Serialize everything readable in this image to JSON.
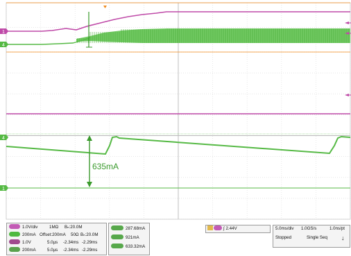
{
  "annotation": {
    "current_label": "635mA"
  },
  "channel_markers": {
    "ch1": "1",
    "ch4": "4",
    "ch4_lower": "4",
    "ch1_lower": "1"
  },
  "settings": {
    "rows": [
      {
        "icon": "ch1-chip",
        "scale": "1.0V/div",
        "impedance": "1MΩ",
        "bw": "Bₙ:20.0M",
        "offset": "",
        "pos1": "",
        "pos2": ""
      },
      {
        "icon": "ch4-chip",
        "scale": "200mA",
        "impedance": "50Ω",
        "bw": "Bₙ:20.0M",
        "offset": "Offset:200mA",
        "pos1": "",
        "pos2": ""
      },
      {
        "icon": "ref-chip",
        "scale": "1.0V",
        "time": "5.0µs",
        "pos1": "-2.34ms",
        "pos2": "-2.29ms"
      },
      {
        "icon": "math-chip",
        "scale": "200mA",
        "time": "5.0µs",
        "pos1": "-2.34ms",
        "pos2": "-2.29ms"
      }
    ]
  },
  "measurements": [
    "287.68mA",
    "921mA",
    "633.32mA"
  ],
  "trigger": {
    "source_letter": "A",
    "channel": "1",
    "slope_symbol": "∫",
    "level": "2.44V"
  },
  "acquisition": {
    "time_div": "5.0ms/div",
    "sample_rate": "1.0GS/s",
    "resolution": "1.0ns/pt",
    "state": "Stopped",
    "mode": "Single Seq",
    "record_icon": "↓"
  },
  "colors": {
    "magenta": "#bf4aa8",
    "green": "#55b944",
    "grid": "#cfcfcf",
    "trigger_orange": "#f08a1c"
  }
}
